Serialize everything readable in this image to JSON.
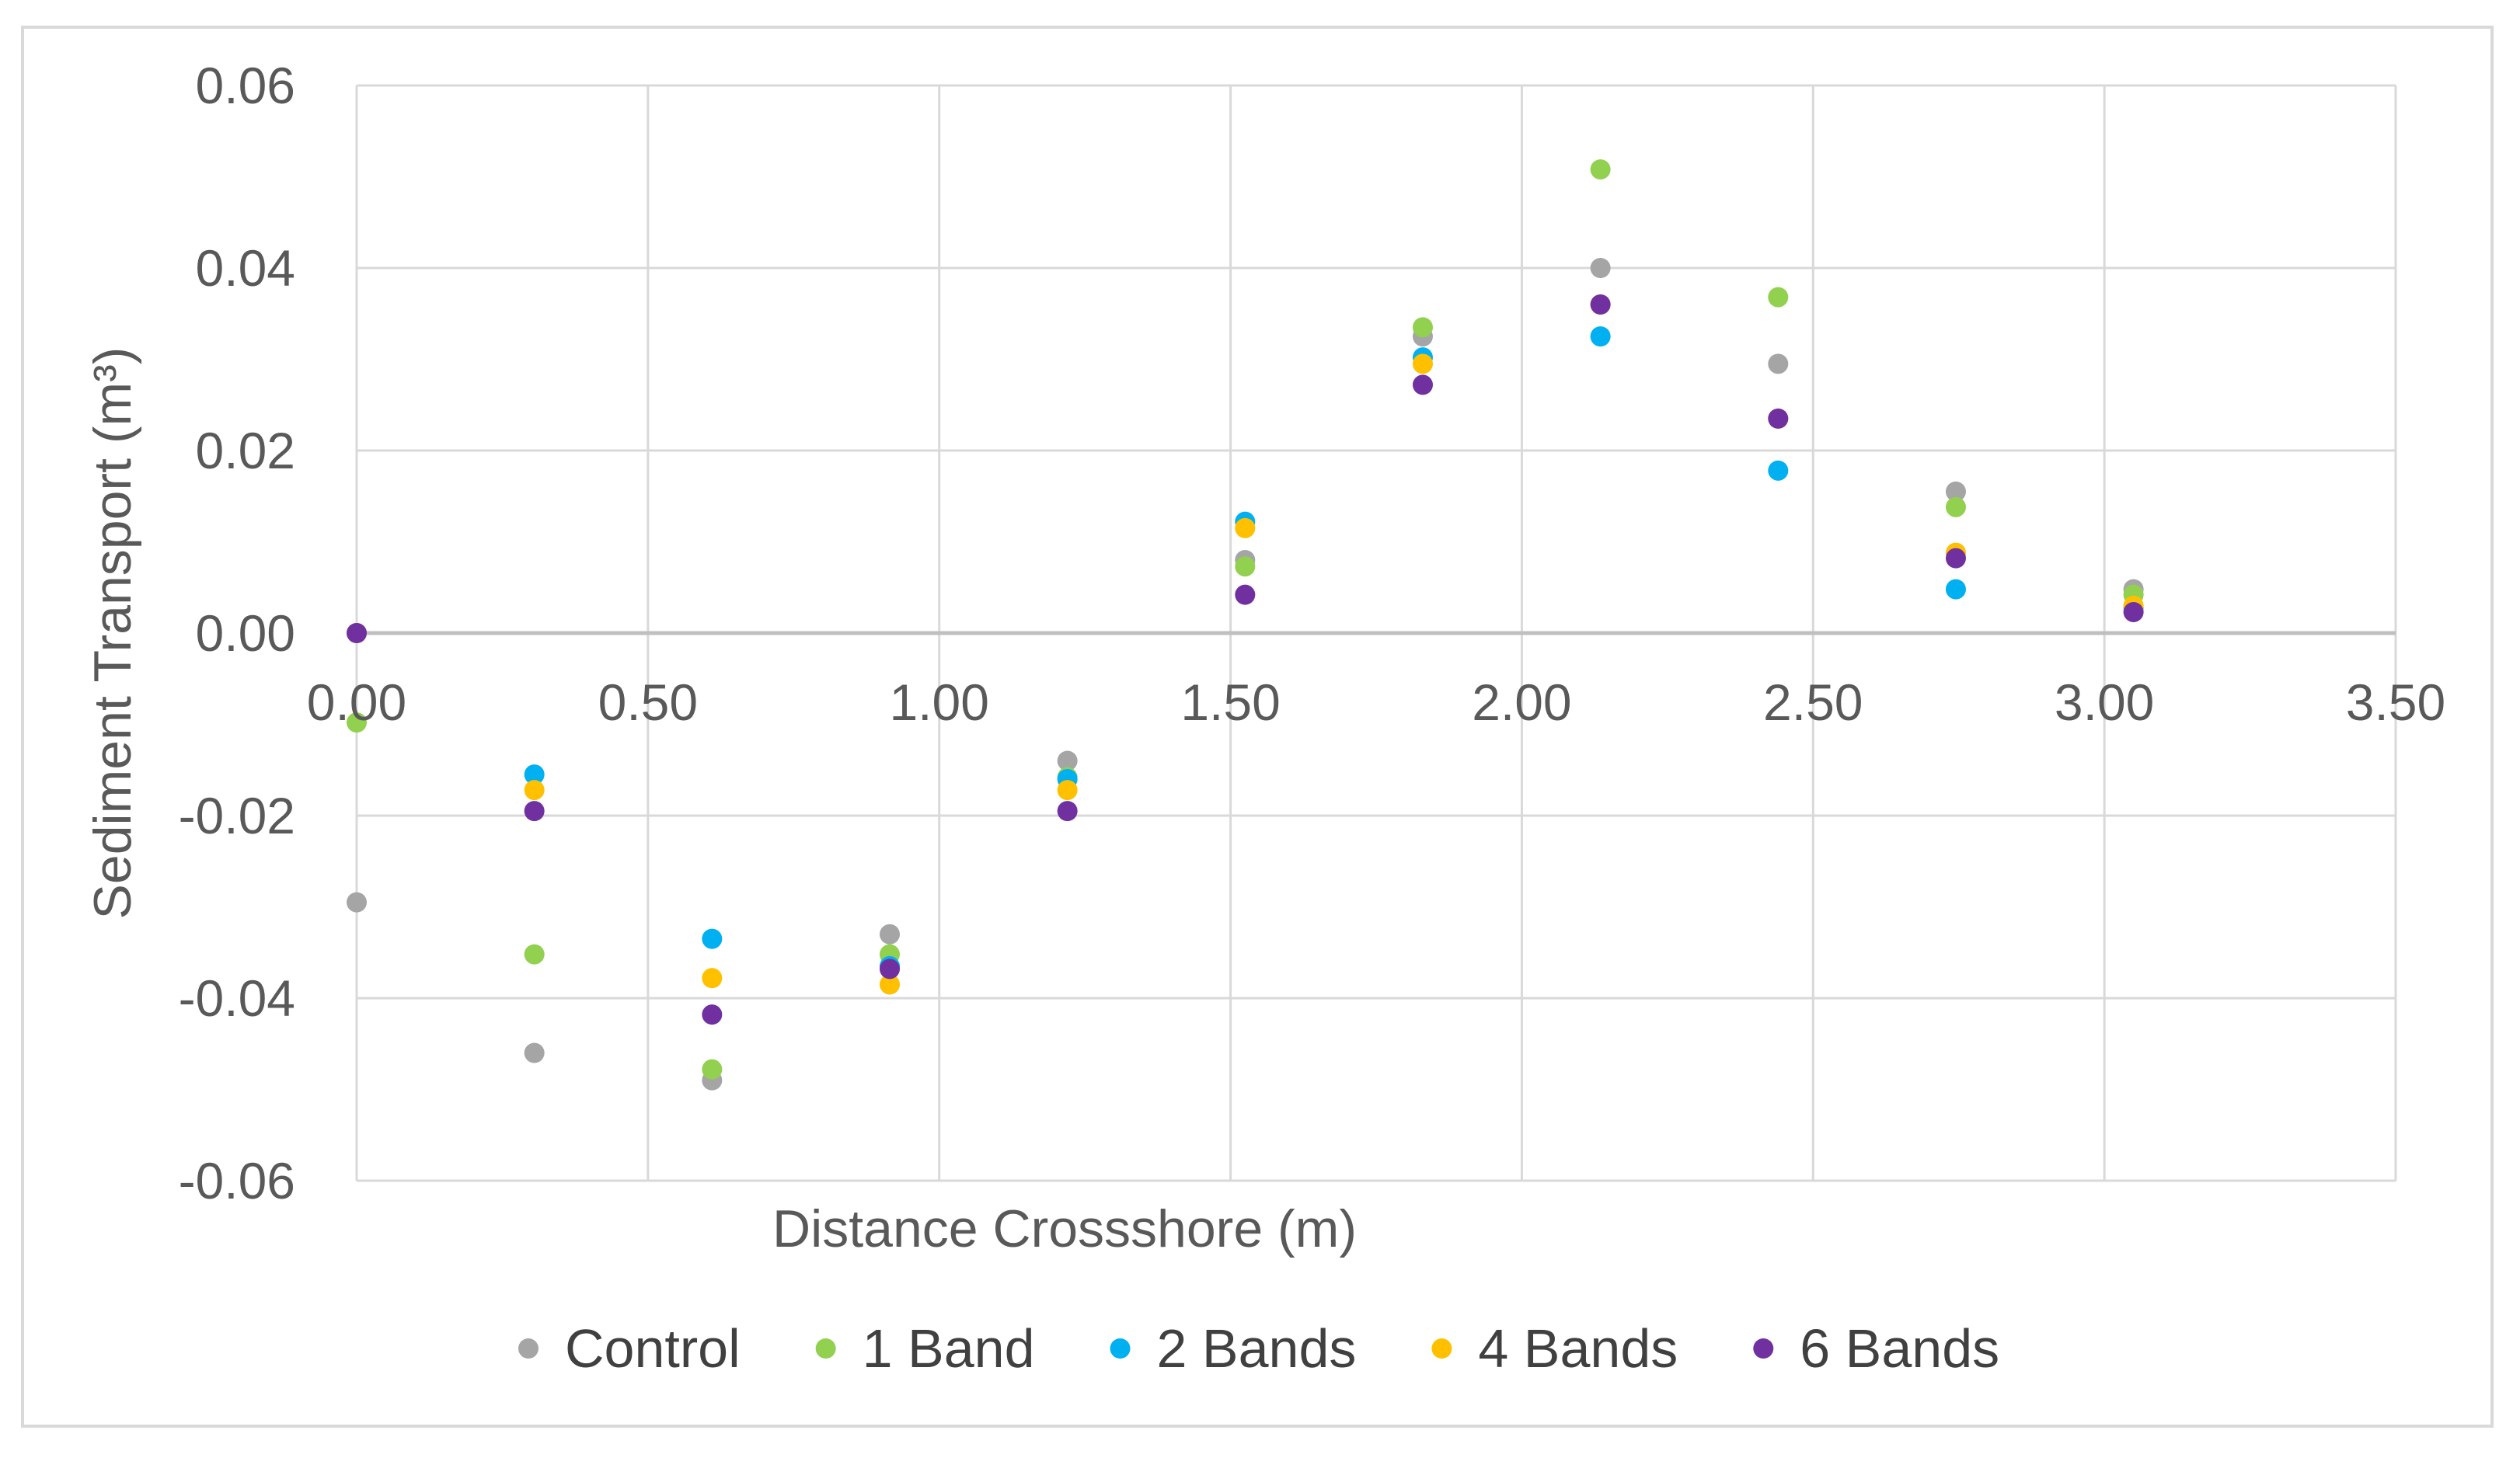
{
  "chart_data": {
    "type": "scatter",
    "title": "",
    "xlabel": "Distance Crossshore (m)",
    "ylabel": "Sediment Transport (m³)",
    "xlim": [
      0,
      3.5
    ],
    "ylim": [
      -0.06,
      0.06
    ],
    "x_ticks": [
      "0.00",
      "0.50",
      "1.00",
      "1.50",
      "2.00",
      "2.50",
      "3.00",
      "3.50"
    ],
    "y_ticks": [
      "0.06",
      "0.04",
      "0.02",
      "0.00",
      "-0.02",
      "-0.04",
      "-0.06"
    ],
    "grid": true,
    "legend_position": "bottom",
    "x": [
      0.0,
      0.305,
      0.61,
      0.915,
      1.22,
      1.525,
      1.83,
      2.135,
      2.44,
      2.745,
      3.05
    ],
    "series": [
      {
        "name": "Control",
        "color": "#a5a5a5",
        "values": [
          -0.0295,
          -0.046,
          -0.049,
          -0.033,
          -0.014,
          0.008,
          0.0325,
          0.04,
          0.0295,
          0.0155,
          0.0048
        ]
      },
      {
        "name": "1 Band",
        "color": "#92d050",
        "values": [
          -0.0098,
          -0.0352,
          -0.0478,
          -0.0352,
          -0.0158,
          0.0073,
          0.0335,
          0.0508,
          0.0368,
          0.0138,
          0.0042
        ]
      },
      {
        "name": "2 Bands",
        "color": "#00b0f0",
        "values": [
          0.0,
          -0.0155,
          -0.0335,
          -0.0365,
          -0.016,
          0.0122,
          0.0302,
          0.0325,
          0.0178,
          0.0048,
          0.0028
        ]
      },
      {
        "name": "4 Bands",
        "color": "#ffc000",
        "values": [
          0.0,
          -0.0172,
          -0.0378,
          -0.0385,
          -0.0172,
          0.0115,
          0.0295,
          0.036,
          0.0235,
          0.0088,
          0.003
        ]
      },
      {
        "name": "6 Bands",
        "color": "#7030a0",
        "values": [
          0.0,
          -0.0195,
          -0.0418,
          -0.0368,
          -0.0195,
          0.0042,
          0.0272,
          0.036,
          0.0235,
          0.0082,
          0.0023
        ]
      }
    ]
  }
}
